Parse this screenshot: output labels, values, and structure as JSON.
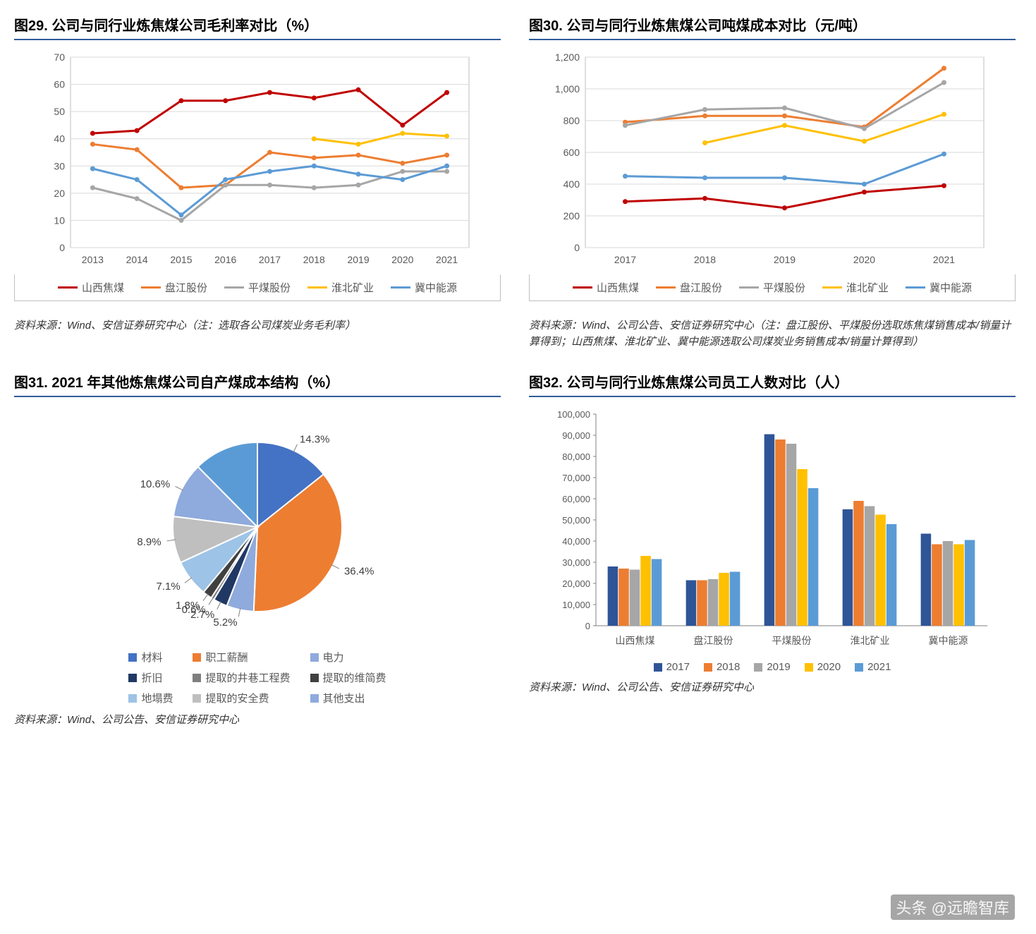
{
  "colors": {
    "series": {
      "shanxi": "#c00000",
      "panjiang": "#ed7d31",
      "pingmei": "#a6a6a6",
      "huaibei": "#ffc000",
      "jizhong": "#5b9bd5"
    },
    "bar_years": {
      "2017": "#2f5597",
      "2018": "#ed7d31",
      "2019": "#a6a6a6",
      "2020": "#ffc000",
      "2021": "#5b9bd5"
    },
    "pie": [
      "#4472c4",
      "#ed7d31",
      "#8faadc",
      "#203864",
      "#7f7f7f",
      "#404040",
      "#9dc3e6",
      "#bfbfbf",
      "#8faadc"
    ],
    "grid": "#d9d9d9",
    "axis": "#bfbfbf",
    "text": "#595959",
    "title_border": "#2e5c9a"
  },
  "watermark": "头条 @远瞻智库",
  "chart29": {
    "title": "图29. 公司与同行业炼焦煤公司毛利率对比（%）",
    "type": "line",
    "x": [
      "2013",
      "2014",
      "2015",
      "2016",
      "2017",
      "2018",
      "2019",
      "2020",
      "2021"
    ],
    "ylim": [
      0,
      70
    ],
    "ytick_step": 10,
    "series_names": {
      "shanxi": "山西焦煤",
      "panjiang": "盘江股份",
      "pingmei": "平煤股份",
      "huaibei": "淮北矿业",
      "jizhong": "冀中能源"
    },
    "series": {
      "shanxi": [
        42,
        43,
        54,
        54,
        57,
        55,
        58,
        45,
        57
      ],
      "panjiang": [
        38,
        36,
        22,
        23,
        35,
        33,
        34,
        31,
        34
      ],
      "pingmei": [
        22,
        18,
        10,
        23,
        23,
        22,
        23,
        28,
        28
      ],
      "huaibei": [
        null,
        null,
        null,
        null,
        null,
        40,
        38,
        42,
        41
      ],
      "jizhong": [
        29,
        25,
        12,
        25,
        28,
        30,
        27,
        25,
        30
      ]
    },
    "source": "资料来源：Wind、安信证券研究中心（注：选取各公司煤炭业务毛利率）"
  },
  "chart30": {
    "title": "图30. 公司与同行业炼焦煤公司吨煤成本对比（元/吨）",
    "type": "line",
    "x": [
      "2017",
      "2018",
      "2019",
      "2020",
      "2021"
    ],
    "ylim": [
      0,
      1200
    ],
    "ytick_step": 200,
    "series_names": {
      "shanxi": "山西焦煤",
      "panjiang": "盘江股份",
      "pingmei": "平煤股份",
      "huaibei": "淮北矿业",
      "jizhong": "冀中能源"
    },
    "series": {
      "shanxi": [
        290,
        310,
        250,
        350,
        390
      ],
      "panjiang": [
        790,
        830,
        830,
        760,
        1130
      ],
      "pingmei": [
        770,
        870,
        880,
        750,
        1040
      ],
      "huaibei": [
        null,
        660,
        770,
        670,
        840
      ],
      "jizhong": [
        450,
        440,
        440,
        400,
        590
      ]
    },
    "source": "资料来源：Wind、公司公告、安信证券研究中心（注：盘江股份、平煤股份选取炼焦煤销售成本/销量计算得到；山西焦煤、淮北矿业、冀中能源选取公司煤炭业务销售成本/销量计算得到）"
  },
  "chart31": {
    "title": "图31. 2021 年其他炼焦煤公司自产煤成本结构（%）",
    "type": "pie",
    "slices": [
      {
        "label": "材料",
        "value": 14.3,
        "color": "#4472c4"
      },
      {
        "label": "职工薪酬",
        "value": 36.4,
        "color": "#ed7d31"
      },
      {
        "label": "电力",
        "value": 5.2,
        "color": "#8faadc"
      },
      {
        "label": "折旧",
        "value": 2.7,
        "color": "#203864"
      },
      {
        "label": "提取的井巷工程费",
        "value": 0.6,
        "color": "#7f7f7f"
      },
      {
        "label": "提取的维简费",
        "value": 1.8,
        "color": "#404040"
      },
      {
        "label": "地塌费",
        "value": 7.1,
        "color": "#9dc3e6"
      },
      {
        "label": "提取的安全费",
        "value": 8.9,
        "color": "#bfbfbf"
      },
      {
        "label": "其他支出",
        "value": 10.6,
        "color": "#8faadc"
      },
      {
        "label": "_remainder",
        "value": 12.4,
        "color": "#5b9bd5",
        "hide_label": true
      }
    ],
    "legend_items": [
      "材料",
      "职工薪酬",
      "电力",
      "折旧",
      "提取的井巷工程费",
      "提取的维简费",
      "地塌费",
      "提取的安全费",
      "其他支出"
    ],
    "source": "资料来源：Wind、公司公告、安信证券研究中心"
  },
  "chart32": {
    "title": "图32. 公司与同行业炼焦煤公司员工人数对比（人）",
    "type": "bar",
    "categories": [
      "山西焦煤",
      "盘江股份",
      "平煤股份",
      "淮北矿业",
      "冀中能源"
    ],
    "ylim": [
      0,
      100000
    ],
    "ytick_step": 10000,
    "years": [
      "2017",
      "2018",
      "2019",
      "2020",
      "2021"
    ],
    "data": {
      "山西焦煤": [
        28000,
        27000,
        26500,
        33000,
        31500
      ],
      "盘江股份": [
        21500,
        21500,
        22000,
        25000,
        25500
      ],
      "平煤股份": [
        90500,
        88000,
        86000,
        74000,
        65000
      ],
      "淮北矿业": [
        55000,
        59000,
        56500,
        52500,
        48000
      ],
      "冀中能源": [
        43500,
        38500,
        40000,
        38500,
        40500
      ]
    },
    "source": "资料来源：Wind、公司公告、安信证券研究中心"
  }
}
